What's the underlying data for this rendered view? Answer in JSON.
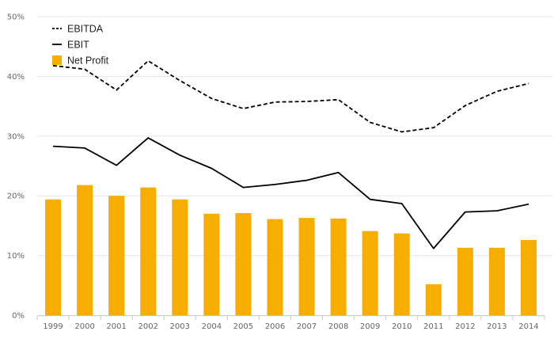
{
  "chart_data": {
    "type": "bar",
    "categories": [
      "1999",
      "2000",
      "2001",
      "2002",
      "2003",
      "2004",
      "2005",
      "2006",
      "2007",
      "2008",
      "2009",
      "2010",
      "2011",
      "2012",
      "2013",
      "2014"
    ],
    "series": [
      {
        "name": "Net Profit",
        "kind": "bar",
        "color": "#F7AE00",
        "values": [
          19.4,
          21.8,
          20.0,
          21.4,
          19.4,
          17.0,
          17.1,
          16.1,
          16.3,
          16.2,
          14.1,
          13.7,
          5.2,
          11.3,
          11.3,
          12.6
        ]
      },
      {
        "name": "EBITDA",
        "kind": "line",
        "style": "dashed",
        "color": "#000000",
        "values": [
          41.8,
          41.2,
          37.7,
          42.6,
          39.3,
          36.3,
          34.6,
          35.7,
          35.8,
          36.1,
          32.3,
          30.7,
          31.4,
          35.1,
          37.5,
          38.8
        ]
      },
      {
        "name": "EBIT",
        "kind": "line",
        "style": "solid",
        "color": "#000000",
        "values": [
          28.3,
          28.0,
          25.1,
          29.7,
          26.8,
          24.6,
          21.4,
          21.9,
          22.6,
          23.9,
          19.4,
          18.7,
          11.2,
          17.3,
          17.5,
          18.6
        ]
      }
    ],
    "y_ticks": [
      "0%",
      "10%",
      "20%",
      "30%",
      "40%",
      "50%"
    ],
    "ylim": [
      0,
      50
    ],
    "grid": true,
    "legend_position": "top-left",
    "title": "",
    "xlabel": "",
    "ylabel": ""
  }
}
